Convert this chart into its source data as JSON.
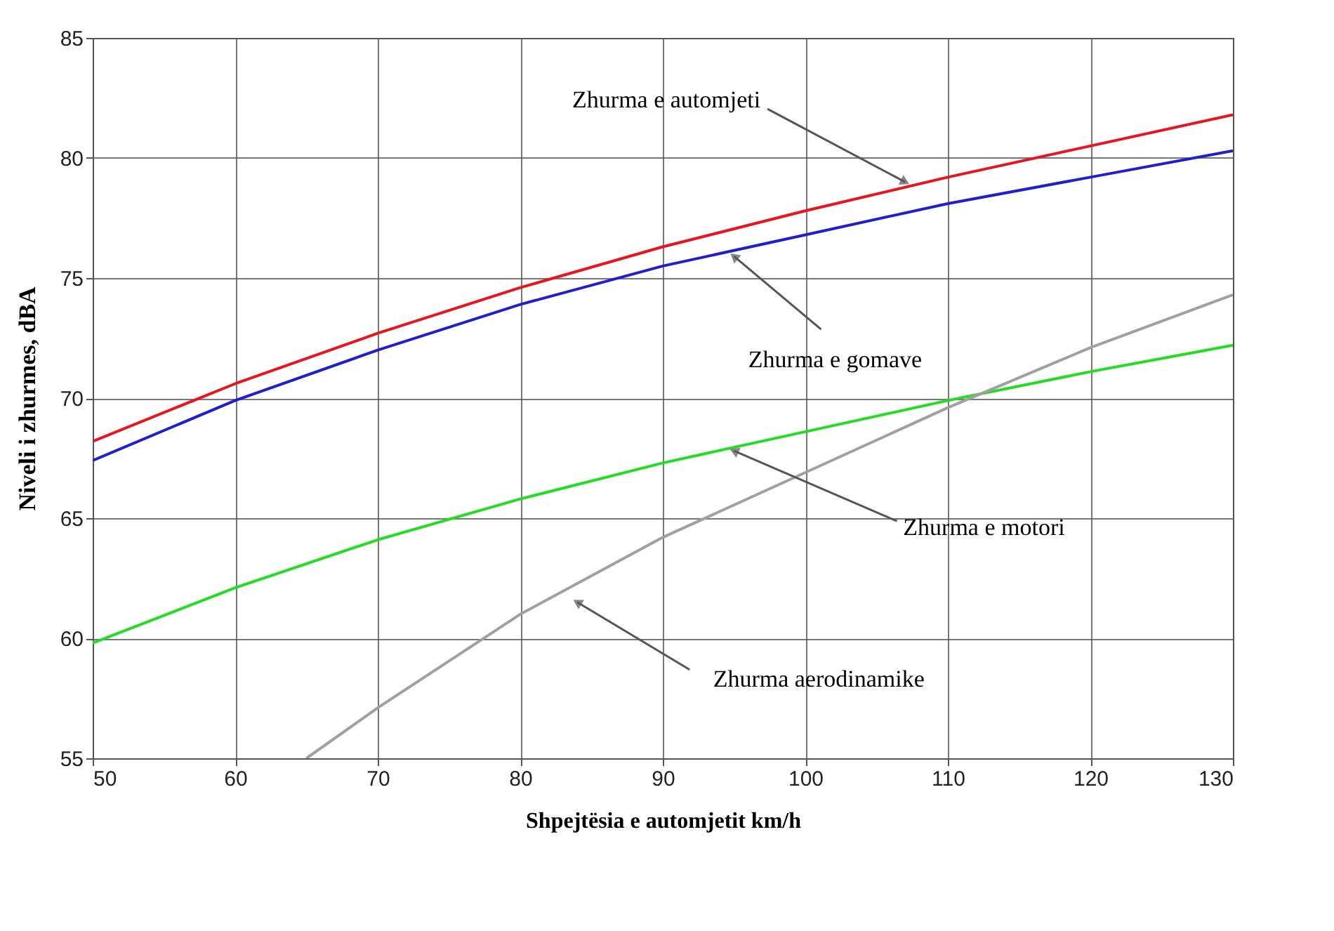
{
  "chart_data": {
    "type": "line",
    "xlabel": "Shpejtësia e automjetit km/h",
    "ylabel": "Niveli i zhurmes, dBA",
    "xlim": [
      50,
      130
    ],
    "xticks": [
      50,
      60,
      70,
      80,
      90,
      100,
      110,
      120,
      130
    ],
    "ylim": [
      55,
      85
    ],
    "yticks": [
      55,
      60,
      65,
      70,
      75,
      80,
      85
    ],
    "grid": true,
    "legend": false,
    "x": [
      50,
      60,
      70,
      80,
      90,
      100,
      110,
      120,
      130
    ],
    "series": [
      {
        "color": "#e8141e",
        "values": [
          68.2,
          70.6,
          72.7,
          74.6,
          76.3,
          77.8,
          79.2,
          80.5,
          81.8
        ]
      },
      {
        "color": "#1f1fcf",
        "values": [
          67.4,
          69.9,
          72.0,
          73.9,
          75.5,
          76.8,
          78.1,
          79.2,
          80.3
        ]
      },
      {
        "color": "#22dd22",
        "values": [
          59.8,
          62.1,
          64.1,
          65.8,
          67.3,
          68.6,
          69.9,
          71.1,
          72.2
        ]
      },
      {
        "color": "#a0a0a0",
        "x": [
          65,
          70,
          80,
          90,
          100,
          110,
          120,
          130
        ],
        "values": [
          55,
          57.1,
          61,
          64.2,
          66.9,
          69.6,
          72.1,
          74.3
        ]
      }
    ],
    "annotations": [
      {
        "text": "Zhurma e automjeti",
        "x": 107,
        "y": 79
      },
      {
        "text": "Zhurma e gomave",
        "x": 95,
        "y": 75.9
      },
      {
        "text": "Zhurma e motori",
        "x": 95,
        "y": 67.8
      },
      {
        "text": "Zhurma aerodinamike",
        "x": 84,
        "y": 61.5
      }
    ]
  }
}
